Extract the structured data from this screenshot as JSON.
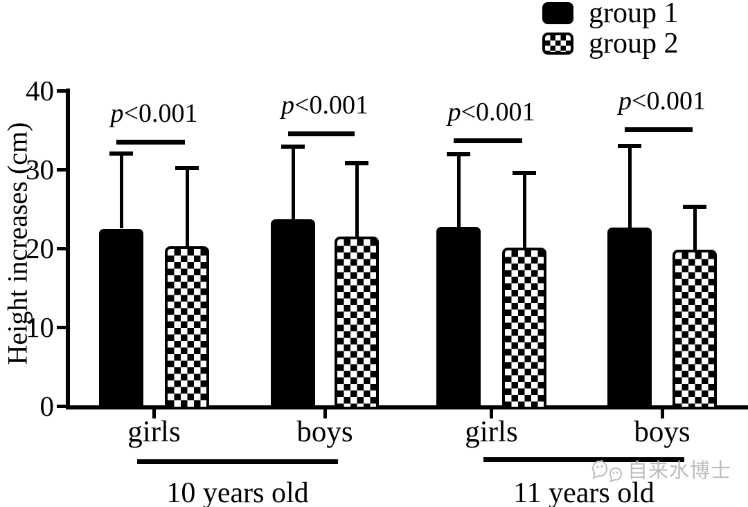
{
  "colors": {
    "foreground": "#000000",
    "background": "#ffffff",
    "watermark": "#bdbdbd"
  },
  "legend": {
    "items": [
      {
        "label": "group 1",
        "fill": "solid-black"
      },
      {
        "label": "group 2",
        "fill": "checkerboard"
      }
    ]
  },
  "watermark": {
    "icon": "chat-faces-icon",
    "text": "自来水博士"
  },
  "chart_data": {
    "type": "bar",
    "title": "",
    "xlabel": "",
    "ylabel": "Height increases (cm)",
    "ylim": [
      0,
      40
    ],
    "yticks": [
      0,
      10,
      20,
      30,
      40
    ],
    "grid": false,
    "legend_position": "top-right",
    "categories": [
      "girls",
      "boys",
      "girls",
      "boys"
    ],
    "category_groups": [
      {
        "label": "10 years old",
        "span": [
          0,
          1
        ]
      },
      {
        "label": "11 years old",
        "span": [
          2,
          3
        ]
      }
    ],
    "series": [
      {
        "name": "group 1",
        "pattern": "solid-black",
        "values": [
          22.5,
          23.7,
          22.7,
          22.6
        ],
        "error_upper": [
          32.0,
          32.9,
          31.9,
          33.0
        ]
      },
      {
        "name": "group 2",
        "pattern": "checkerboard",
        "values": [
          20.3,
          21.5,
          20.1,
          19.8
        ],
        "error_upper": [
          30.2,
          30.8,
          29.6,
          25.3
        ]
      }
    ],
    "error_bars": "upper-sd-whiskers-with-caps",
    "significance": [
      {
        "pair": 0,
        "text": "p<0.001",
        "line_y": 33.5
      },
      {
        "pair": 1,
        "text": "p<0.001",
        "line_y": 34.6
      },
      {
        "pair": 2,
        "text": "p<0.001",
        "line_y": 33.7
      },
      {
        "pair": 3,
        "text": "p<0.001",
        "line_y": 35.1
      }
    ]
  }
}
